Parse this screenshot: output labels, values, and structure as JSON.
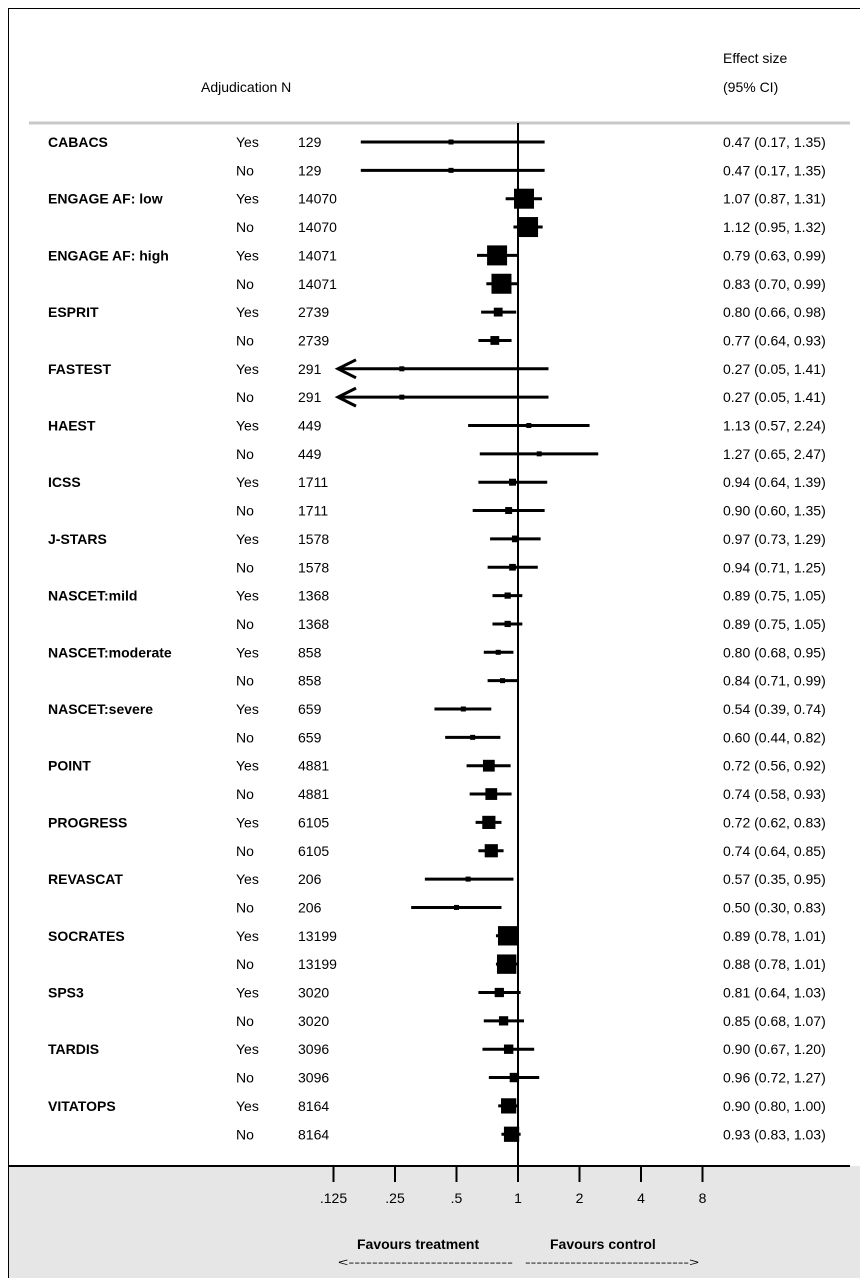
{
  "header": {
    "adjudication_n": "Adjudication N",
    "effect_line1": "Effect size",
    "effect_line2": "(95% CI)"
  },
  "footer": {
    "favours_treatment": "Favours treatment",
    "favours_control": "Favours control",
    "arrow_left": "<----------------------------",
    "arrow_right": "----------------------------->"
  },
  "chart_data": {
    "type": "forest",
    "scale": "log",
    "null_line": 1,
    "xlim": [
      0.125,
      8
    ],
    "x_ticks": [
      {
        "value": 0.125,
        "label": ".125"
      },
      {
        "value": 0.25,
        "label": ".25"
      },
      {
        "value": 0.5,
        "label": ".5"
      },
      {
        "value": 1,
        "label": "1"
      },
      {
        "value": 2,
        "label": "2"
      },
      {
        "value": 4,
        "label": "4"
      },
      {
        "value": 8,
        "label": "8"
      }
    ],
    "columns": [
      "Adjudication",
      "N",
      "Effect size (95% CI)"
    ],
    "rows": [
      {
        "study": "CABACS",
        "adj": "Yes",
        "n": "129",
        "est": 0.47,
        "lo": 0.17,
        "hi": 1.35,
        "text": "0.47 (0.17, 1.35)"
      },
      {
        "study": "",
        "adj": "No",
        "n": "129",
        "est": 0.47,
        "lo": 0.17,
        "hi": 1.35,
        "text": "0.47 (0.17, 1.35)"
      },
      {
        "study": "ENGAGE AF: low",
        "adj": "Yes",
        "n": "14070",
        "est": 1.07,
        "lo": 0.87,
        "hi": 1.31,
        "text": "1.07 (0.87, 1.31)"
      },
      {
        "study": "",
        "adj": "No",
        "n": "14070",
        "est": 1.12,
        "lo": 0.95,
        "hi": 1.32,
        "text": "1.12 (0.95, 1.32)"
      },
      {
        "study": "ENGAGE AF: high",
        "adj": "Yes",
        "n": "14071",
        "est": 0.79,
        "lo": 0.63,
        "hi": 0.99,
        "text": "0.79 (0.63, 0.99)"
      },
      {
        "study": "",
        "adj": "No",
        "n": "14071",
        "est": 0.83,
        "lo": 0.7,
        "hi": 0.99,
        "text": "0.83 (0.70, 0.99)"
      },
      {
        "study": "ESPRIT",
        "adj": "Yes",
        "n": "2739",
        "est": 0.8,
        "lo": 0.66,
        "hi": 0.98,
        "text": "0.80 (0.66, 0.98)"
      },
      {
        "study": "",
        "adj": "No",
        "n": "2739",
        "est": 0.77,
        "lo": 0.64,
        "hi": 0.93,
        "text": "0.77 (0.64, 0.93)"
      },
      {
        "study": "FASTEST",
        "adj": "Yes",
        "n": "291",
        "est": 0.27,
        "lo": 0.05,
        "hi": 1.41,
        "text": "0.27 (0.05, 1.41)"
      },
      {
        "study": "",
        "adj": "No",
        "n": "291",
        "est": 0.27,
        "lo": 0.05,
        "hi": 1.41,
        "text": "0.27 (0.05, 1.41)"
      },
      {
        "study": "HAEST",
        "adj": "Yes",
        "n": "449",
        "est": 1.13,
        "lo": 0.57,
        "hi": 2.24,
        "text": "1.13 (0.57, 2.24)"
      },
      {
        "study": "",
        "adj": "No",
        "n": "449",
        "est": 1.27,
        "lo": 0.65,
        "hi": 2.47,
        "text": "1.27 (0.65, 2.47)"
      },
      {
        "study": "ICSS",
        "adj": "Yes",
        "n": "1711",
        "est": 0.94,
        "lo": 0.64,
        "hi": 1.39,
        "text": "0.94 (0.64, 1.39)"
      },
      {
        "study": "",
        "adj": "No",
        "n": "1711",
        "est": 0.9,
        "lo": 0.6,
        "hi": 1.35,
        "text": "0.90 (0.60, 1.35)"
      },
      {
        "study": "J-STARS",
        "adj": "Yes",
        "n": "1578",
        "est": 0.97,
        "lo": 0.73,
        "hi": 1.29,
        "text": "0.97 (0.73, 1.29)"
      },
      {
        "study": "",
        "adj": "No",
        "n": "1578",
        "est": 0.94,
        "lo": 0.71,
        "hi": 1.25,
        "text": "0.94 (0.71, 1.25)"
      },
      {
        "study": "NASCET:mild",
        "adj": "Yes",
        "n": "1368",
        "est": 0.89,
        "lo": 0.75,
        "hi": 1.05,
        "text": "0.89 (0.75, 1.05)"
      },
      {
        "study": "",
        "adj": "No",
        "n": "1368",
        "est": 0.89,
        "lo": 0.75,
        "hi": 1.05,
        "text": "0.89 (0.75, 1.05)"
      },
      {
        "study": "NASCET:moderate",
        "adj": "Yes",
        "n": "858",
        "est": 0.8,
        "lo": 0.68,
        "hi": 0.95,
        "text": "0.80 (0.68, 0.95)"
      },
      {
        "study": "",
        "adj": "No",
        "n": "858",
        "est": 0.84,
        "lo": 0.71,
        "hi": 0.99,
        "text": "0.84 (0.71, 0.99)"
      },
      {
        "study": "NASCET:severe",
        "adj": "Yes",
        "n": "659",
        "est": 0.54,
        "lo": 0.39,
        "hi": 0.74,
        "text": "0.54 (0.39, 0.74)"
      },
      {
        "study": "",
        "adj": "No",
        "n": "659",
        "est": 0.6,
        "lo": 0.44,
        "hi": 0.82,
        "text": "0.60 (0.44, 0.82)"
      },
      {
        "study": "POINT",
        "adj": "Yes",
        "n": "4881",
        "est": 0.72,
        "lo": 0.56,
        "hi": 0.92,
        "text": "0.72 (0.56, 0.92)"
      },
      {
        "study": "",
        "adj": "No",
        "n": "4881",
        "est": 0.74,
        "lo": 0.58,
        "hi": 0.93,
        "text": "0.74 (0.58, 0.93)"
      },
      {
        "study": "PROGRESS",
        "adj": "Yes",
        "n": "6105",
        "est": 0.72,
        "lo": 0.62,
        "hi": 0.83,
        "text": "0.72 (0.62, 0.83)"
      },
      {
        "study": "",
        "adj": "No",
        "n": "6105",
        "est": 0.74,
        "lo": 0.64,
        "hi": 0.85,
        "text": "0.74 (0.64, 0.85)"
      },
      {
        "study": "REVASCAT",
        "adj": "Yes",
        "n": "206",
        "est": 0.57,
        "lo": 0.35,
        "hi": 0.95,
        "text": "0.57 (0.35, 0.95)"
      },
      {
        "study": "",
        "adj": "No",
        "n": "206",
        "est": 0.5,
        "lo": 0.3,
        "hi": 0.83,
        "text": "0.50 (0.30, 0.83)"
      },
      {
        "study": "SOCRATES",
        "adj": "Yes",
        "n": "13199",
        "est": 0.89,
        "lo": 0.78,
        "hi": 1.01,
        "text": "0.89 (0.78, 1.01)"
      },
      {
        "study": "",
        "adj": "No",
        "n": "13199",
        "est": 0.88,
        "lo": 0.78,
        "hi": 1.01,
        "text": "0.88 (0.78, 1.01)"
      },
      {
        "study": "SPS3",
        "adj": "Yes",
        "n": "3020",
        "est": 0.81,
        "lo": 0.64,
        "hi": 1.03,
        "text": "0.81 (0.64, 1.03)"
      },
      {
        "study": "",
        "adj": "No",
        "n": "3020",
        "est": 0.85,
        "lo": 0.68,
        "hi": 1.07,
        "text": "0.85 (0.68, 1.07)"
      },
      {
        "study": "TARDIS",
        "adj": "Yes",
        "n": "3096",
        "est": 0.9,
        "lo": 0.67,
        "hi": 1.2,
        "text": "0.90 (0.67, 1.20)"
      },
      {
        "study": "",
        "adj": "No",
        "n": "3096",
        "est": 0.96,
        "lo": 0.72,
        "hi": 1.27,
        "text": "0.96 (0.72, 1.27)"
      },
      {
        "study": "VITATOPS",
        "adj": "Yes",
        "n": "8164",
        "est": 0.9,
        "lo": 0.8,
        "hi": 1.0,
        "text": "0.90 (0.80, 1.00)"
      },
      {
        "study": "",
        "adj": "No",
        "n": "8164",
        "est": 0.93,
        "lo": 0.83,
        "hi": 1.03,
        "text": "0.93 (0.83, 1.03)"
      }
    ]
  }
}
